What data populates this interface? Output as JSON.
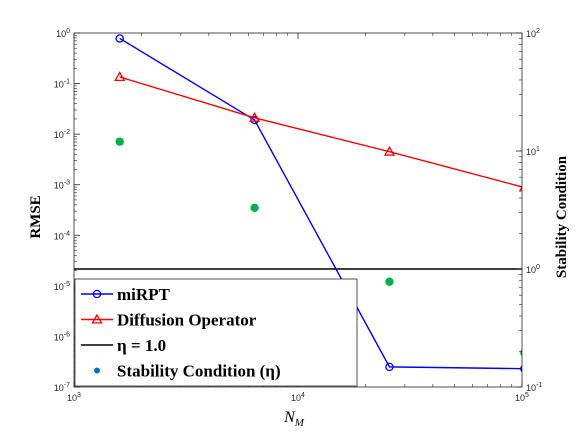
{
  "chart_data": {
    "type": "line",
    "xlabel": "N_M",
    "ylabel_left": "RMSE",
    "ylabel_right": "Stability Condition",
    "xscale": "log",
    "yscale_left": "log",
    "yscale_right": "log",
    "xlim": [
      1000,
      100000
    ],
    "ylim_left": [
      1e-07,
      1
    ],
    "ylim_right": [
      0.1,
      100
    ],
    "grid": false,
    "legend_position": "bottom-left",
    "x_ticks": [
      {
        "value": 1000,
        "label_base": "10",
        "label_exp": "3"
      },
      {
        "value": 10000,
        "label_base": "10",
        "label_exp": "4"
      },
      {
        "value": 100000,
        "label_base": "10",
        "label_exp": "5"
      }
    ],
    "y_left_ticks": [
      {
        "value": 1e-07,
        "label_base": "10",
        "label_exp": "-7"
      },
      {
        "value": 1e-06,
        "label_base": "10",
        "label_exp": "-6"
      },
      {
        "value": 1e-05,
        "label_base": "10",
        "label_exp": "-5"
      },
      {
        "value": 0.0001,
        "label_base": "10",
        "label_exp": "-4"
      },
      {
        "value": 0.001,
        "label_base": "10",
        "label_exp": "-3"
      },
      {
        "value": 0.01,
        "label_base": "10",
        "label_exp": "-2"
      },
      {
        "value": 0.1,
        "label_base": "10",
        "label_exp": "-1"
      },
      {
        "value": 1,
        "label_base": "10",
        "label_exp": "0"
      }
    ],
    "y_right_ticks": [
      {
        "value": 0.1,
        "label_base": "10",
        "label_exp": "-1"
      },
      {
        "value": 1,
        "label_base": "10",
        "label_exp": "0"
      },
      {
        "value": 10,
        "label_base": "10",
        "label_exp": "1"
      },
      {
        "value": 100,
        "label_base": "10",
        "label_exp": "2"
      }
    ],
    "series": [
      {
        "name": "miRPT",
        "axis": "left",
        "color": "#0000ff",
        "marker": "circle",
        "x": [
          1600,
          6400,
          25600,
          102400
        ],
        "y": [
          0.78,
          0.019,
          2.5e-07,
          2.3e-07
        ]
      },
      {
        "name": "Diffusion Operator",
        "axis": "left",
        "color": "#ff0000",
        "marker": "triangle",
        "x": [
          1600,
          6400,
          25600,
          102400
        ],
        "y": [
          0.135,
          0.021,
          0.0045,
          0.00088
        ]
      },
      {
        "name": "η = 1.0",
        "axis": "right",
        "color": "#000000",
        "marker": "none",
        "x": [
          1000,
          100000
        ],
        "y": [
          1.0,
          1.0
        ]
      },
      {
        "name": "Stability Condition (η)",
        "axis": "right",
        "color": "#00b050",
        "legend_color": "#0072bd",
        "marker": "dot",
        "x": [
          1600,
          6400,
          25600,
          102400
        ],
        "y": [
          12.0,
          3.3,
          0.78,
          0.195
        ]
      }
    ]
  }
}
